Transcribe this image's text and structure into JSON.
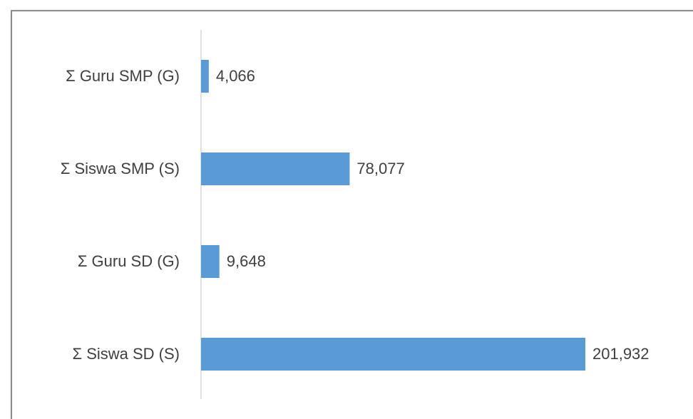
{
  "chart_data": {
    "type": "bar",
    "orientation": "horizontal",
    "categories": [
      "Σ Guru SMP (G)",
      "Σ Siswa SMP (S)",
      "Σ Guru SD (G)",
      "Σ Siswa SD (S)"
    ],
    "values": [
      4066,
      78077,
      9648,
      201932
    ],
    "value_labels": [
      "4,066",
      "78,077",
      "9,648",
      "201,932"
    ],
    "color": "#5b9bd5"
  }
}
